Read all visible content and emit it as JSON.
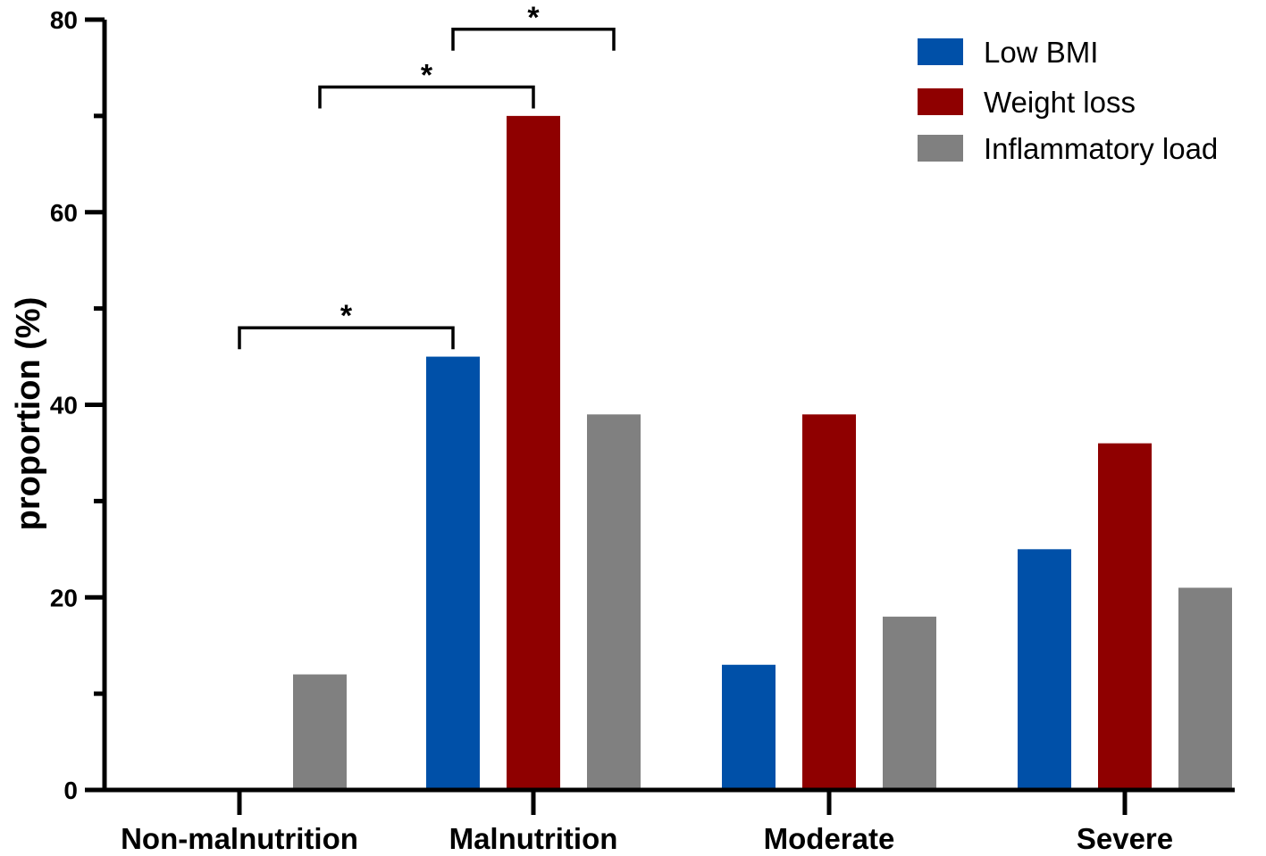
{
  "chart_data": {
    "type": "bar",
    "title": "",
    "xlabel": "",
    "ylabel": "proportion (%)",
    "ylim": [
      0,
      80
    ],
    "yticks": [
      0,
      20,
      40,
      60,
      80
    ],
    "yminor": [
      10,
      30,
      50,
      70
    ],
    "grid": false,
    "legend_position": "top-right",
    "categories": [
      "Non-malnutrition",
      "Malnutrition",
      "Moderate",
      "Severe"
    ],
    "series": [
      {
        "name": "Low BMI",
        "color": "#0050A8",
        "values": [
          0,
          45,
          13,
          25
        ]
      },
      {
        "name": "Weight loss",
        "color": "#8F0000",
        "values": [
          0,
          70,
          39,
          36
        ]
      },
      {
        "name": "Inflammatory load",
        "color": "#808080",
        "values": [
          12,
          39,
          18,
          21
        ]
      }
    ],
    "annotations": [
      {
        "label": "*",
        "from": {
          "category": 0,
          "series": 1
        },
        "to": {
          "category": 1,
          "series": 0
        },
        "level": 48
      },
      {
        "label": "*",
        "from": {
          "category": 0,
          "series": 2
        },
        "to": {
          "category": 1,
          "series": 1
        },
        "level": 73
      },
      {
        "label": "*",
        "from": {
          "category": 1,
          "series": 0
        },
        "to": {
          "category": 1,
          "series": 2
        },
        "level": 79
      }
    ]
  }
}
